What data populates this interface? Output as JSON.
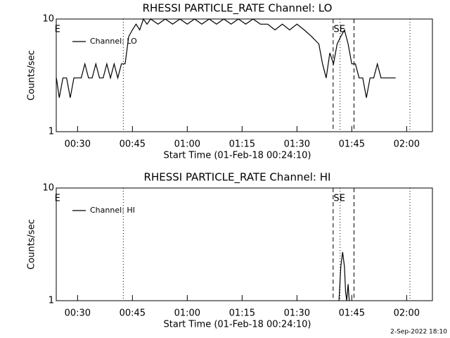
{
  "chart_data": [
    {
      "type": "line",
      "title": "RHESSI PARTICLE_RATE Channel: LO",
      "xlabel": "Start Time (01-Feb-18 00:24:10)",
      "ylabel": "Counts/sec",
      "log_y": true,
      "ylim": [
        1,
        10
      ],
      "yticks": [
        1,
        10
      ],
      "xlim": [
        24.17,
        127.05
      ],
      "xticks": [
        {
          "value": 30,
          "label": "00:30"
        },
        {
          "value": 45,
          "label": "00:45"
        },
        {
          "value": 60,
          "label": "01:00"
        },
        {
          "value": 75,
          "label": "01:15"
        },
        {
          "value": 90,
          "label": "01:30"
        },
        {
          "value": 105,
          "label": "01:45"
        },
        {
          "value": 120,
          "label": "02:00"
        }
      ],
      "x": [
        24.2,
        25,
        26,
        27,
        28,
        29,
        30,
        31,
        32,
        33,
        34,
        35,
        36,
        37,
        38,
        39,
        40,
        41,
        42,
        43,
        44,
        45,
        46,
        47,
        48,
        49,
        50,
        52,
        54,
        56,
        58,
        60,
        62,
        64,
        66,
        68,
        70,
        72,
        74,
        76,
        78,
        80,
        82,
        84,
        86,
        88,
        90,
        92,
        94,
        96,
        97,
        98,
        99,
        100,
        101,
        102,
        103,
        104,
        105,
        106,
        107,
        108,
        109,
        110,
        111,
        112,
        113,
        114,
        115,
        116,
        117
      ],
      "series": [
        {
          "name": "Channel: LO",
          "color": "#000000",
          "values": [
            3,
            2,
            3,
            3,
            2,
            3,
            3,
            3,
            4,
            3,
            3,
            4,
            3,
            3,
            4,
            3,
            4,
            3,
            4,
            4,
            7,
            8,
            9,
            8,
            10,
            9,
            10,
            9,
            10,
            9,
            10,
            9,
            10,
            9,
            10,
            9,
            10,
            9,
            10,
            9,
            10,
            9,
            9,
            8,
            9,
            8,
            9,
            8,
            7,
            6,
            4,
            3,
            5,
            4,
            6,
            7,
            8,
            6,
            4,
            4,
            3,
            3,
            2,
            3,
            3,
            4,
            3,
            3,
            3,
            3,
            3
          ]
        }
      ],
      "vlines": [
        {
          "x": 42.5,
          "style": "dotted"
        },
        {
          "x": 99.9,
          "style": "dashed"
        },
        {
          "x": 101.8,
          "style": "dotted"
        },
        {
          "x": 105.6,
          "style": "dashed"
        },
        {
          "x": 120.9,
          "style": "dotted"
        }
      ],
      "annotations": [
        {
          "text": "E",
          "x": 24.5
        },
        {
          "text": "S",
          "x": 100.8
        },
        {
          "text": "E",
          "x": 102.4
        }
      ]
    },
    {
      "type": "line",
      "title": "RHESSI PARTICLE_RATE Channel: HI",
      "xlabel": "Start Time (01-Feb-18 00:24:10)",
      "ylabel": "Counts/sec",
      "log_y": true,
      "ylim": [
        1,
        10
      ],
      "yticks": [
        1,
        10
      ],
      "xlim": [
        24.17,
        127.05
      ],
      "xticks": [
        {
          "value": 30,
          "label": "00:30"
        },
        {
          "value": 45,
          "label": "00:45"
        },
        {
          "value": 60,
          "label": "01:00"
        },
        {
          "value": 75,
          "label": "01:15"
        },
        {
          "value": 90,
          "label": "01:30"
        },
        {
          "value": 105,
          "label": "01:45"
        },
        {
          "value": 120,
          "label": "02:00"
        }
      ],
      "x": [
        101.5,
        102,
        102.5,
        103,
        103.3,
        103.6,
        104,
        104.3
      ],
      "series": [
        {
          "name": "Channel: HI",
          "color": "#000000",
          "values": [
            1,
            2,
            2.7,
            2,
            1.2,
            1,
            1.4,
            1
          ]
        }
      ],
      "vlines": [
        {
          "x": 42.5,
          "style": "dotted"
        },
        {
          "x": 99.9,
          "style": "dashed"
        },
        {
          "x": 101.8,
          "style": "dotted"
        },
        {
          "x": 105.6,
          "style": "dashed"
        },
        {
          "x": 120.9,
          "style": "dotted"
        }
      ],
      "annotations": [
        {
          "text": "E",
          "x": 24.5
        },
        {
          "text": "S",
          "x": 100.8
        },
        {
          "text": "E",
          "x": 102.4
        }
      ]
    }
  ],
  "footer": "2-Sep-2022 18:10"
}
